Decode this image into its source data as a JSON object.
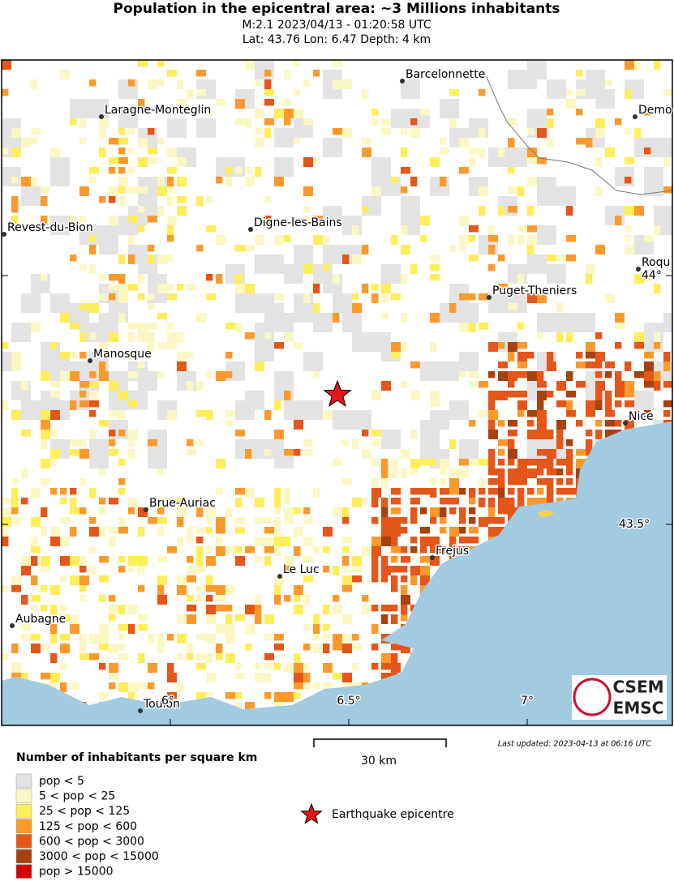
{
  "header": {
    "title": "Population in the epicentral area: ~3 Millions inhabitants",
    "event_line": "M:2.1 2023/04/13 - 01:20:58 UTC",
    "location_line": "Lat: 43.76 Lon: 6.47 Depth: 4 km"
  },
  "map": {
    "cities": [
      {
        "label": "Barcelonnette"
      },
      {
        "label": "Laragne-Monteglin"
      },
      {
        "label": "Demo"
      },
      {
        "label": "Revest-du-Bion"
      },
      {
        "label": "Digne-les-Bains"
      },
      {
        "label": "Roqu"
      },
      {
        "label": "Puget-Theniers"
      },
      {
        "label": "Manosque"
      },
      {
        "label": "Nice"
      },
      {
        "label": "Brue-Auriac"
      },
      {
        "label": "Frejus"
      },
      {
        "label": "Le Luc"
      },
      {
        "label": "Aubagne"
      },
      {
        "label": "Toulon"
      }
    ],
    "grid_labels": [
      "44°",
      "43.5°",
      "6°",
      "6.5°",
      "7°"
    ],
    "scale_label": "30 km",
    "last_updated": "Last updated: 2023-04-13 at 06:16 UTC",
    "logo": {
      "top": "CSEM",
      "bottom": "EMSC"
    }
  },
  "legend": {
    "title": "Number of inhabitants per square km",
    "items": [
      {
        "label": "pop < 5",
        "color": "#e3e3e3"
      },
      {
        "label": "5 < pop < 25",
        "color": "#fbf7c4"
      },
      {
        "label": "25 < pop < 125",
        "color": "#fdee5a"
      },
      {
        "label": "125 < pop < 600",
        "color": "#fb9a2c"
      },
      {
        "label": "600 < pop < 3000",
        "color": "#e5561a"
      },
      {
        "label": "3000 < pop < 15000",
        "color": "#a5420f"
      },
      {
        "label": "pop > 15000",
        "color": "#d40000"
      }
    ],
    "epicentre_label": "Earthquake epicentre"
  }
}
